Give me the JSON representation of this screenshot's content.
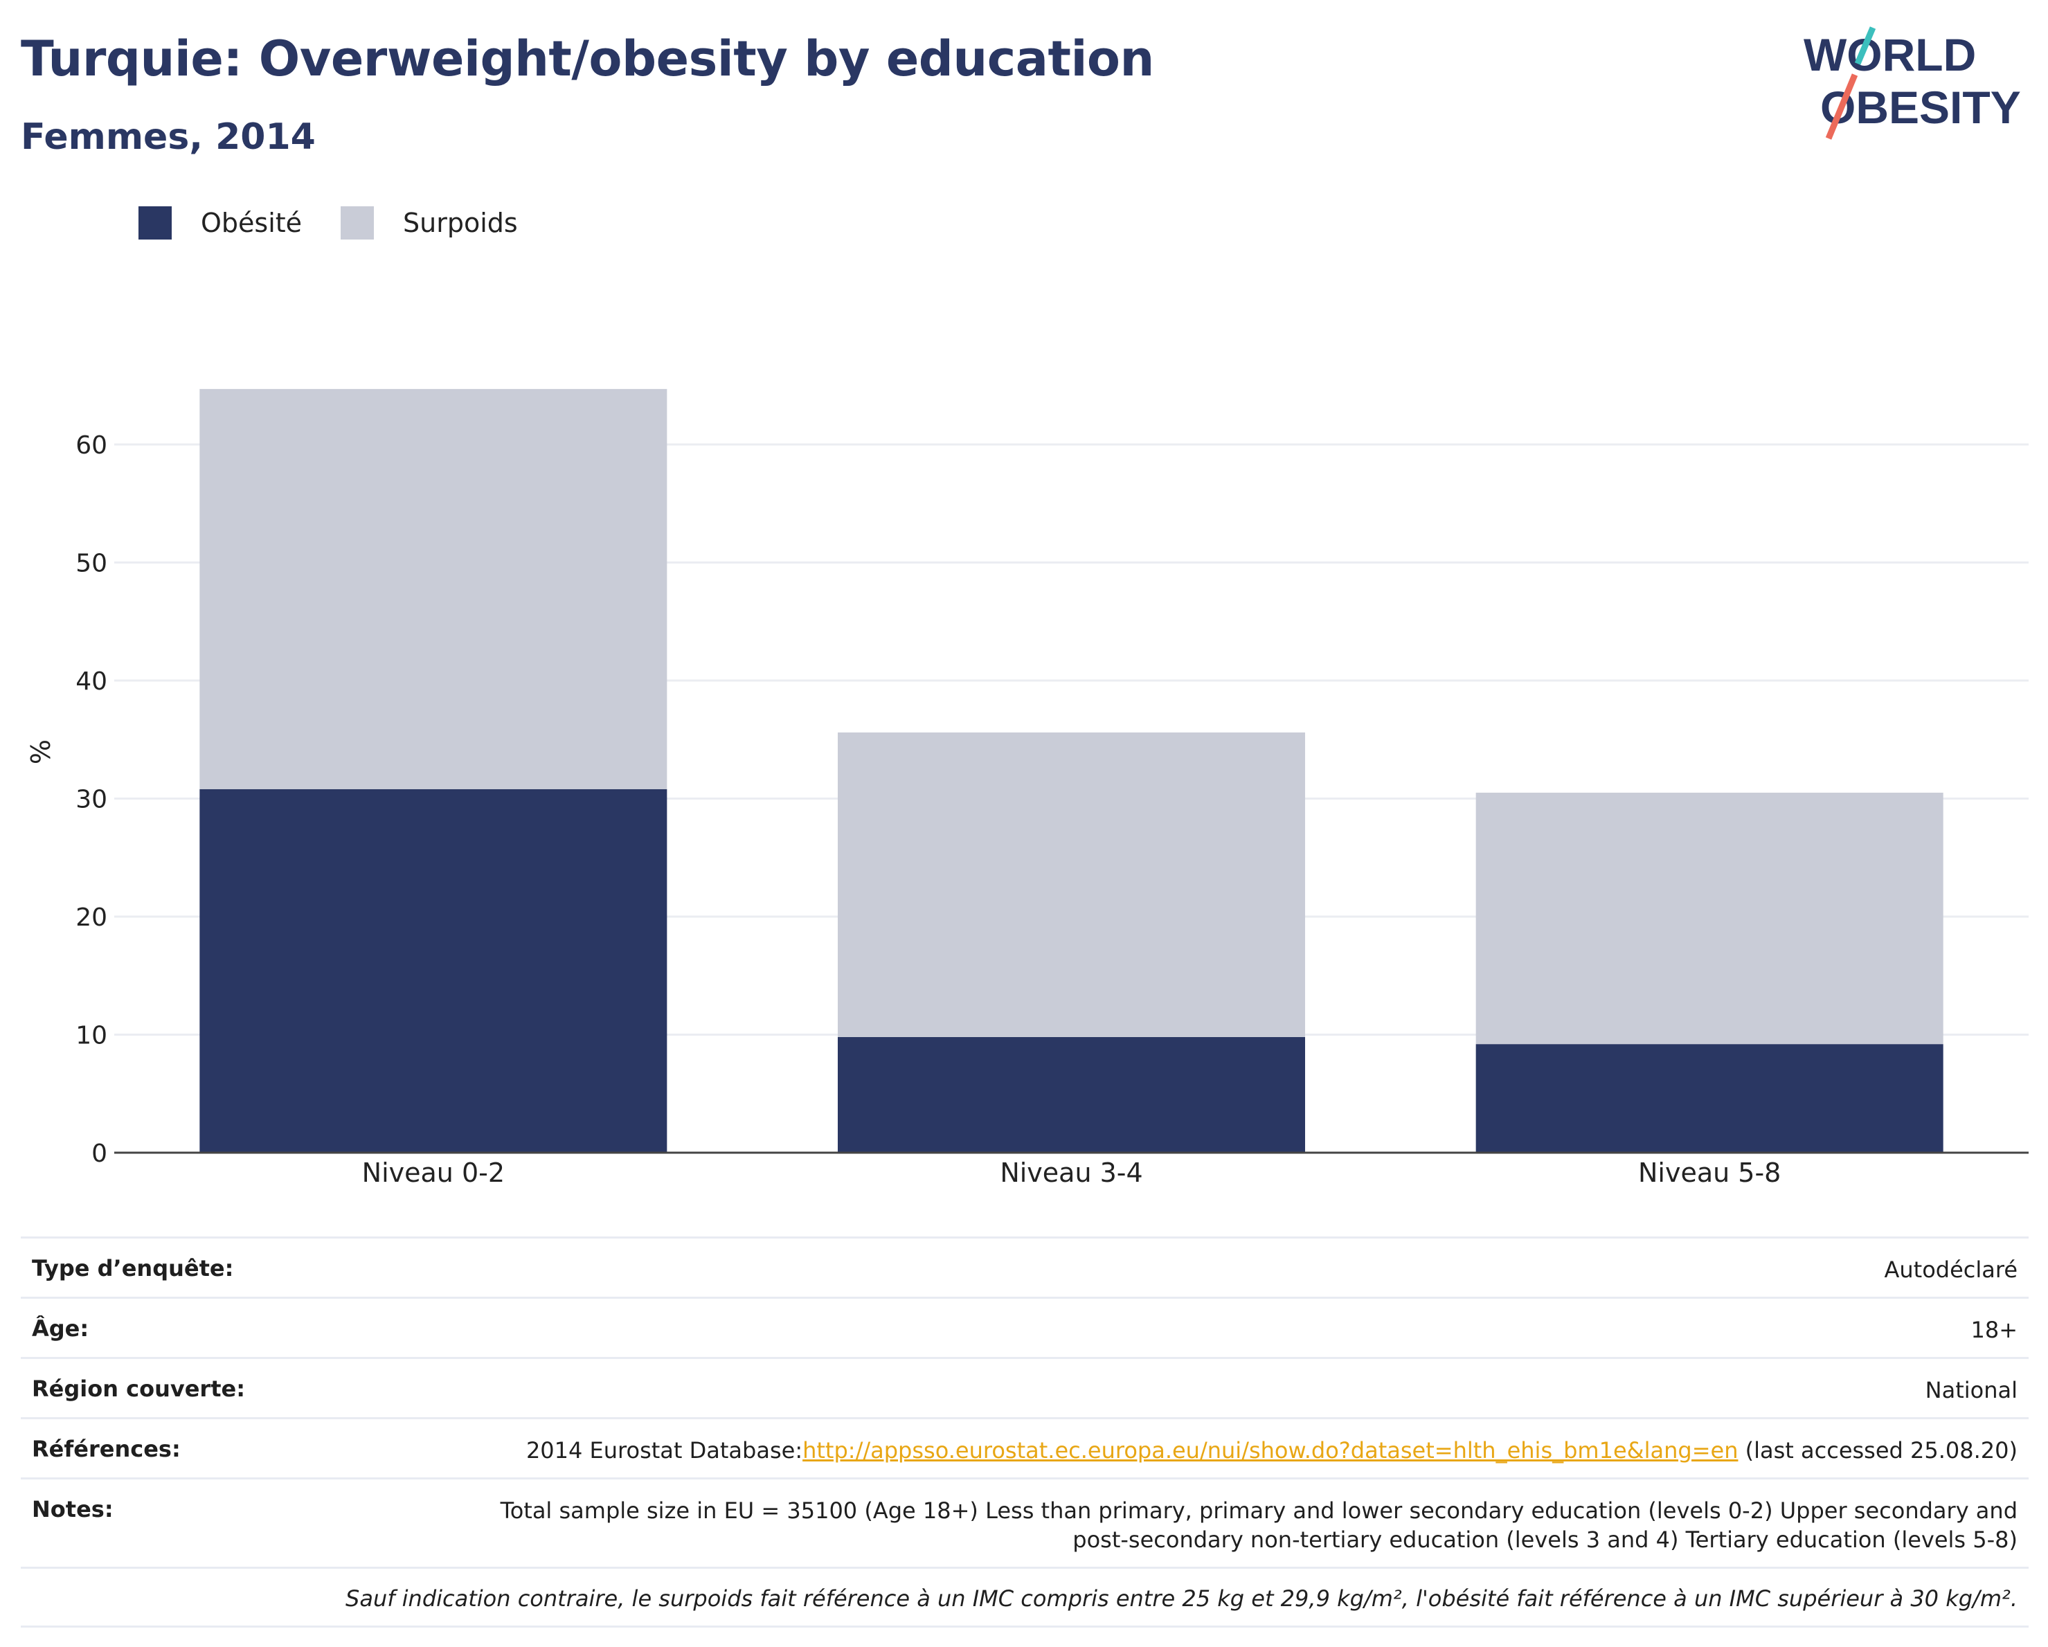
{
  "header": {
    "title": "Turquie: Overweight/obesity by education",
    "subtitle": "Femmes, 2014"
  },
  "logo": {
    "line1": "WORLD",
    "line2": "OBESITY"
  },
  "colors": {
    "obesity": "#2a3763",
    "overweight": "#c9ccd7",
    "title": "#2a3763",
    "link": "#e8a614",
    "gridline": "#ebedf2",
    "logo_teal": "#3cbfbd",
    "logo_coral": "#ec6a5a"
  },
  "chart_data": {
    "type": "bar",
    "stacked": true,
    "categories": [
      "Niveau 0-2",
      "Niveau 3-4",
      "Niveau 5-8"
    ],
    "series": [
      {
        "name": "Obésité",
        "values": [
          30.8,
          9.8,
          9.2
        ]
      },
      {
        "name": "Surpoids",
        "values": [
          33.9,
          25.8,
          21.3
        ]
      }
    ],
    "ylabel": "%",
    "xlabel": "",
    "ylim": [
      0,
      65
    ],
    "yticks": [
      0,
      10,
      20,
      30,
      40,
      50,
      60
    ],
    "grid": true,
    "legend_position": "top-left"
  },
  "info": {
    "rows": [
      {
        "label": "Type d’enquête:",
        "value": "Autodéclaré"
      },
      {
        "label": "Âge:",
        "value": "18+"
      },
      {
        "label": "Région couverte:",
        "value": "National"
      }
    ],
    "references": {
      "label": "Références:",
      "prefix": "2014 Eurostat Database:",
      "link": "http://appsso.eurostat.ec.europa.eu/nui/show.do?dataset=hlth_ehis_bm1e&lang=en",
      "suffix": " (last accessed 25.08.20)"
    },
    "notes": {
      "label": "Notes:",
      "line1": "Total sample size in EU = 35100 (Age 18+) Less than primary, primary and lower secondary education (levels 0-2) Upper secondary and",
      "line2": "post-secondary non-tertiary education (levels 3 and 4) Tertiary education (levels 5-8)"
    },
    "footnote": "Sauf indication contraire, le surpoids fait référence à un IMC compris entre 25 kg et 29,9 kg/m², l'obésité fait référence à un IMC supérieur à 30 kg/m²."
  }
}
